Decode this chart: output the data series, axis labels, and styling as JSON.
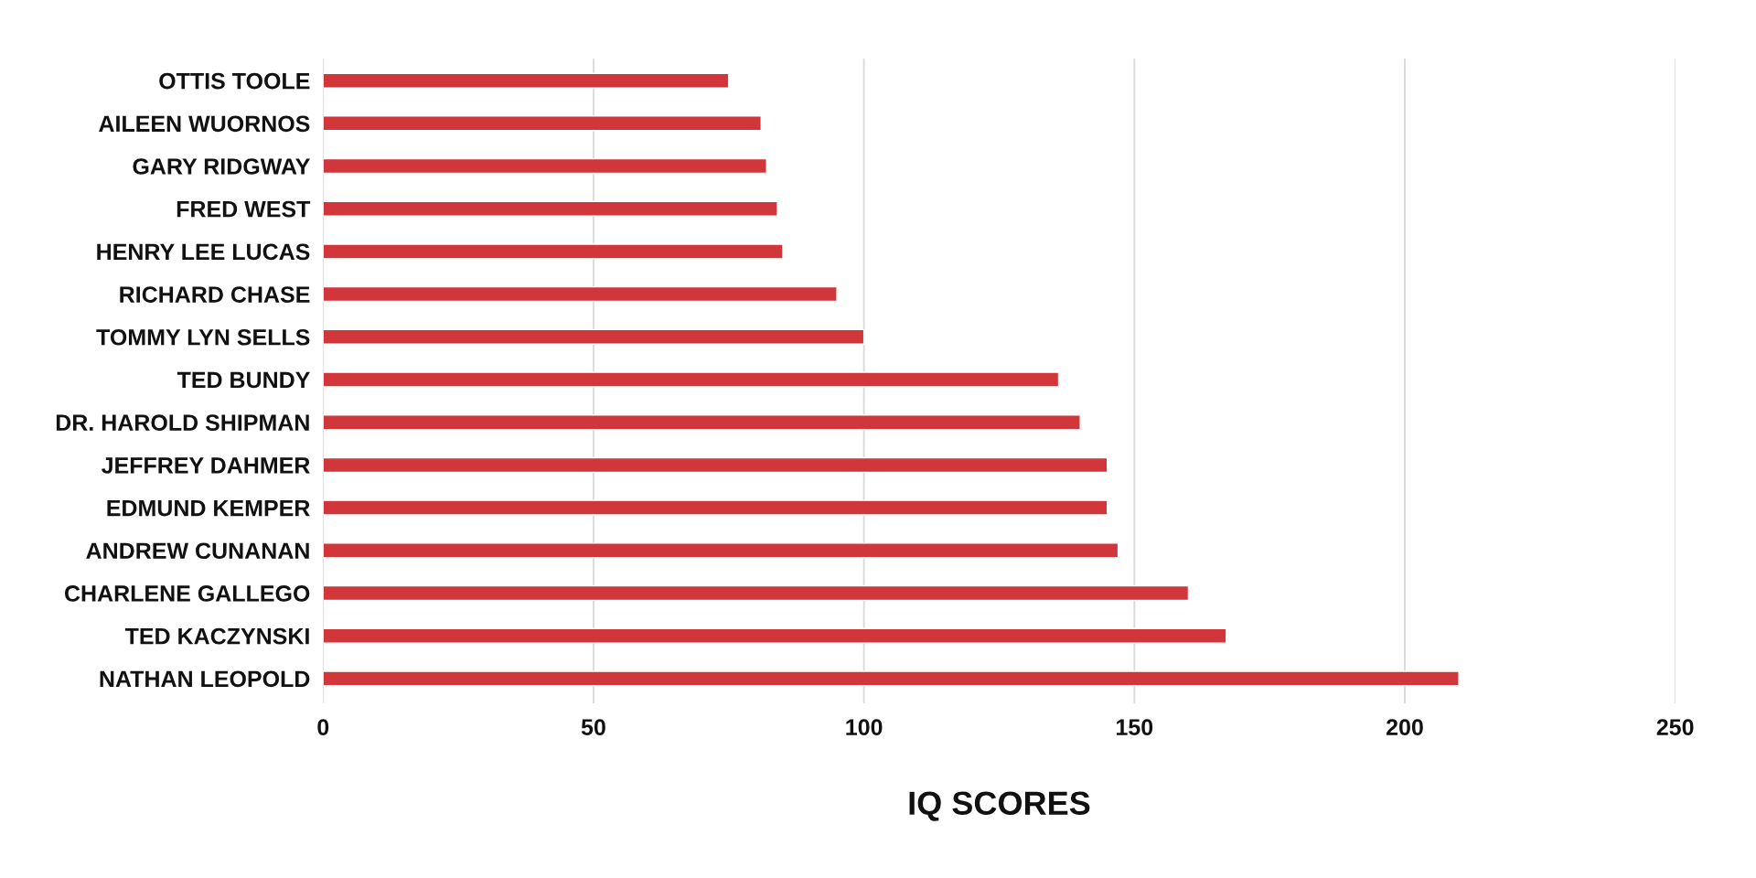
{
  "chart_data": {
    "type": "bar",
    "orientation": "horizontal",
    "categories": [
      "OTTIS TOOLE",
      "AILEEN WUORNOS",
      "GARY RIDGWAY",
      "FRED WEST",
      "HENRY LEE LUCAS",
      "RICHARD CHASE",
      "TOMMY LYN SELLS",
      "TED BUNDY",
      "DR. HAROLD SHIPMAN",
      "JEFFREY DAHMER",
      "EDMUND KEMPER",
      "ANDREW CUNANAN",
      "CHARLENE GALLEGO",
      "TED KACZYNSKI",
      "NATHAN LEOPOLD"
    ],
    "values": [
      75,
      81,
      82,
      84,
      85,
      95,
      100,
      136,
      140,
      145,
      145,
      147,
      160,
      167,
      210
    ],
    "color": "#d0363a",
    "xlabel": "IQ SCORES",
    "xlim": [
      0,
      250
    ],
    "xticks": [
      0,
      50,
      100,
      150,
      200,
      250
    ],
    "grid": "x"
  }
}
